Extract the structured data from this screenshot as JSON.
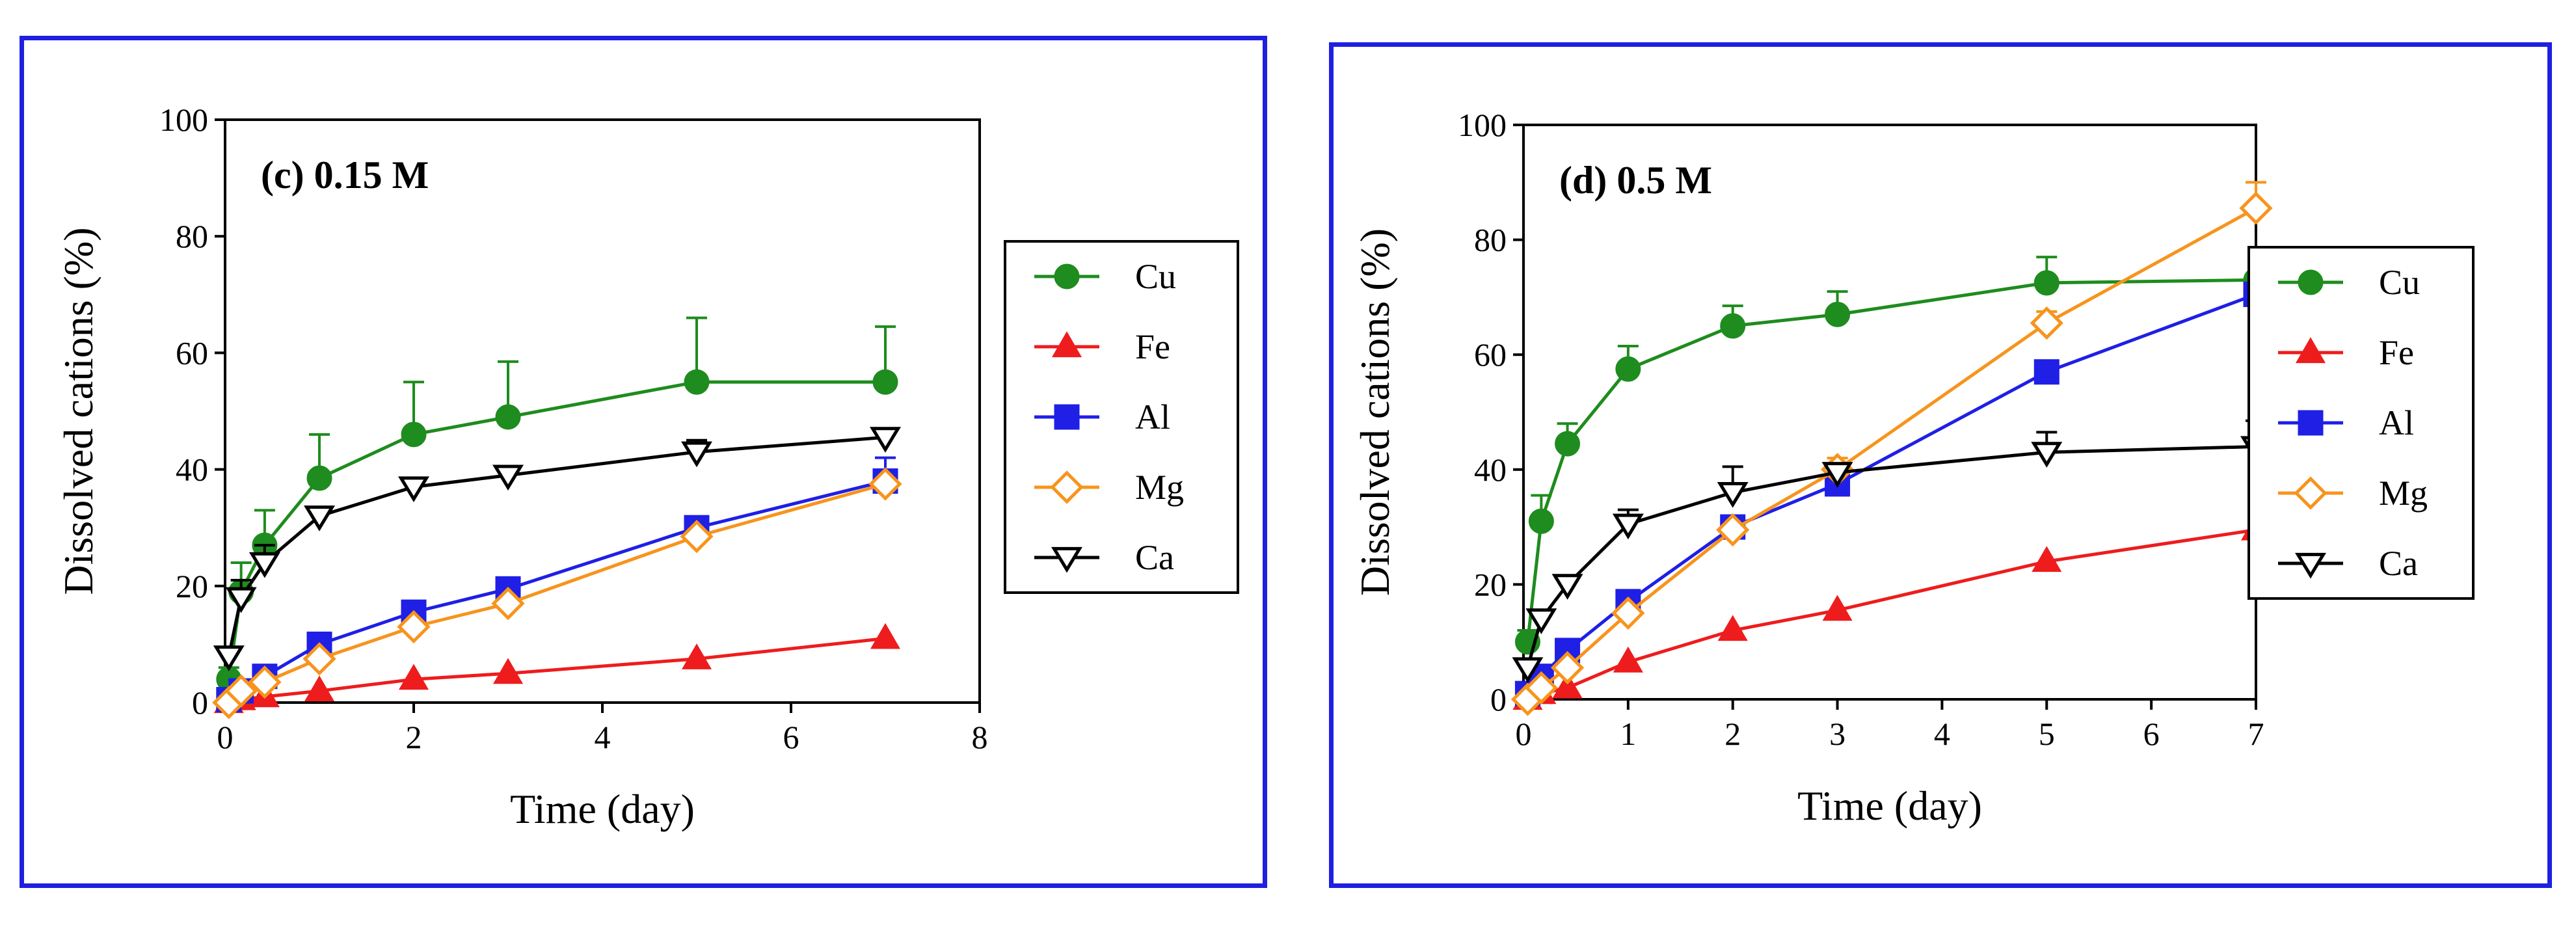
{
  "chart_data": [
    {
      "type": "line",
      "panel_label": "(c) 0.15 M",
      "xlabel": "Time (day)",
      "ylabel": "Dissolved cations (%)",
      "xlim": [
        0,
        8
      ],
      "ylim": [
        0,
        100
      ],
      "xticks": [
        "0",
        "2",
        "4",
        "6",
        "8"
      ],
      "yticks": [
        "0",
        "20",
        "40",
        "60",
        "80",
        "100"
      ],
      "legend_position": "right",
      "x": [
        0.04,
        0.17,
        0.42,
        1,
        2,
        3,
        5,
        7
      ],
      "series": [
        {
          "name": "Cu",
          "color": "#1e8c1e",
          "marker": "circle",
          "filled": true,
          "values": [
            4,
            19,
            27,
            38.5,
            46,
            49,
            55,
            55
          ],
          "errors": [
            2,
            5,
            6,
            7.5,
            9,
            9.5,
            11,
            9.5
          ]
        },
        {
          "name": "Fe",
          "color": "#ee1c1c",
          "marker": "triangle-up",
          "filled": true,
          "values": [
            0,
            0.5,
            1,
            2,
            4,
            5,
            7.5,
            11
          ],
          "errors": [
            0,
            0,
            0,
            0,
            0,
            0,
            0,
            0
          ]
        },
        {
          "name": "Al",
          "color": "#1f1fe6",
          "marker": "square",
          "filled": true,
          "values": [
            0.5,
            2,
            4.5,
            10,
            15.5,
            19.5,
            30,
            38
          ],
          "errors": [
            0,
            0,
            0,
            0,
            0,
            0,
            0,
            4
          ]
        },
        {
          "name": "Mg",
          "color": "#f7941d",
          "marker": "diamond",
          "filled": false,
          "values": [
            0,
            2,
            3.5,
            7.5,
            13,
            17,
            28.5,
            37.5
          ],
          "errors": [
            0,
            0,
            0,
            0,
            0,
            0,
            0,
            0
          ]
        },
        {
          "name": "Ca",
          "color": "#000000",
          "marker": "triangle-down",
          "filled": false,
          "values": [
            8,
            18,
            24,
            32,
            37,
            39,
            43,
            45.5
          ],
          "errors": [
            0,
            3,
            3,
            0,
            0,
            0,
            2,
            0
          ]
        }
      ]
    },
    {
      "type": "line",
      "panel_label": "(d) 0.5 M",
      "xlabel": "Time (day)",
      "ylabel": "Dissolved cations (%)",
      "xlim": [
        0,
        7
      ],
      "ylim": [
        0,
        100
      ],
      "xticks": [
        "0",
        "1",
        "2",
        "3",
        "4",
        "5",
        "6",
        "7"
      ],
      "yticks": [
        "0",
        "20",
        "40",
        "60",
        "80",
        "100"
      ],
      "legend_position": "right",
      "x": [
        0.04,
        0.17,
        0.42,
        1,
        2,
        3,
        5,
        7
      ],
      "series": [
        {
          "name": "Cu",
          "color": "#1e8c1e",
          "marker": "circle",
          "filled": true,
          "values": [
            10,
            31,
            44.5,
            57.5,
            65,
            67,
            72.5,
            73
          ],
          "errors": [
            2,
            4.5,
            3.5,
            4,
            3.5,
            4,
            4.5,
            0
          ]
        },
        {
          "name": "Fe",
          "color": "#ee1c1c",
          "marker": "triangle-up",
          "filled": true,
          "values": [
            0,
            1,
            2,
            6.5,
            12,
            15.5,
            24,
            29.5
          ],
          "errors": [
            0,
            0,
            0,
            0,
            0,
            0,
            0,
            0
          ]
        },
        {
          "name": "Al",
          "color": "#1f1fe6",
          "marker": "square",
          "filled": true,
          "values": [
            1,
            4,
            8.5,
            17,
            30,
            37.5,
            57,
            70.5
          ],
          "errors": [
            0,
            0,
            0,
            0,
            0,
            0,
            0,
            2
          ]
        },
        {
          "name": "Mg",
          "color": "#f7941d",
          "marker": "diamond",
          "filled": false,
          "values": [
            0,
            2,
            5.5,
            15,
            29.5,
            40,
            65.5,
            85.5
          ],
          "errors": [
            0,
            0,
            0,
            0,
            0,
            2,
            2,
            4.5
          ]
        },
        {
          "name": "Ca",
          "color": "#000000",
          "marker": "triangle-down",
          "filled": false,
          "values": [
            5.5,
            14,
            20,
            30.5,
            36,
            39.5,
            43,
            44
          ],
          "errors": [
            0,
            0,
            0,
            2.5,
            4.5,
            0,
            3.5,
            4.5
          ]
        }
      ]
    }
  ]
}
